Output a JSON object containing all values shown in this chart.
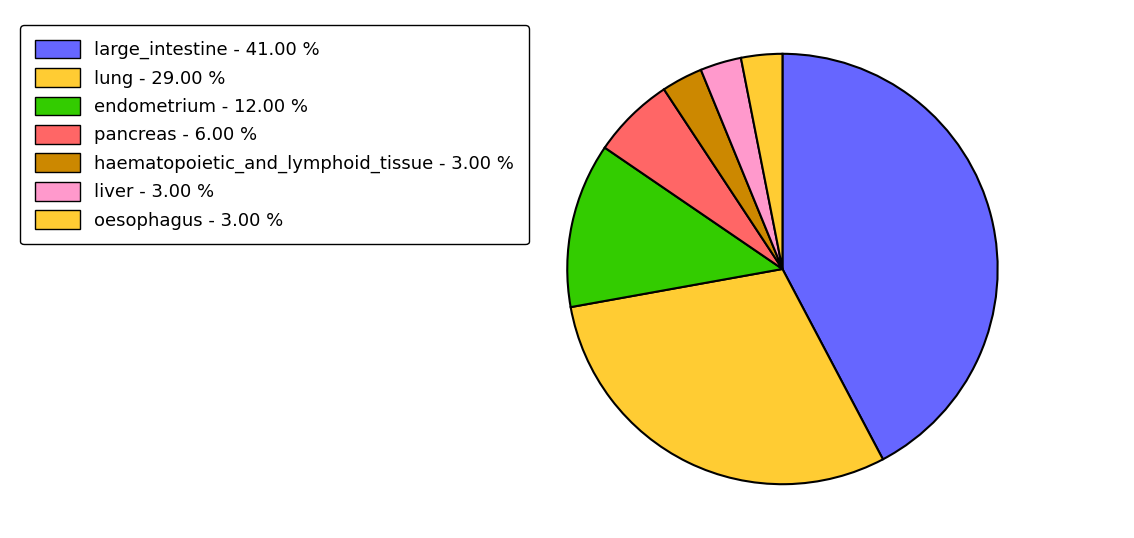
{
  "labels": [
    "large_intestine",
    "lung",
    "endometrium",
    "pancreas",
    "haematopoietic_and_lymphoid_tissue",
    "liver",
    "oesophagus"
  ],
  "values": [
    41,
    29,
    12,
    6,
    3,
    3,
    3
  ],
  "colors": [
    "#6666ff",
    "#ffcc33",
    "#33cc00",
    "#ff6666",
    "#cc8800",
    "#ff99cc",
    "#ffcc33"
  ],
  "legend_labels_clean": [
    "large_intestine - 41.00 %",
    "lung - 29.00 %",
    "endometrium - 12.00 %",
    "pancreas - 6.00 %",
    "haematopoietic_and_lymphoid_tissue - 3.00 %",
    "liver - 3.00 %",
    "oesophagus - 3.00 %"
  ],
  "startangle": 90,
  "figsize": [
    11.34,
    5.38
  ],
  "dpi": 100
}
